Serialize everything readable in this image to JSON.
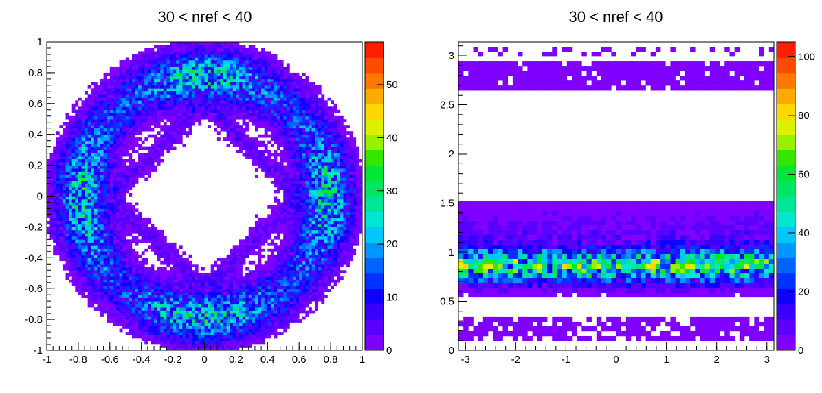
{
  "chart_data": [
    {
      "type": "heatmap",
      "title": "30 < nref < 40",
      "xlabel": "",
      "ylabel": "",
      "xlim": [
        -1,
        1
      ],
      "ylim": [
        -1,
        1
      ],
      "x_ticks": [
        "-1",
        "-0.8",
        "-0.6",
        "-0.4",
        "-0.2",
        "0",
        "0.2",
        "0.4",
        "0.6",
        "0.8",
        "1"
      ],
      "y_ticks": [
        "-1",
        "-0.8",
        "-0.6",
        "-0.4",
        "-0.2",
        "0",
        "0.2",
        "0.4",
        "0.6",
        "0.8",
        "1"
      ],
      "z_range": [
        0,
        58
      ],
      "z_ticks": [
        "0",
        "10",
        "20",
        "30",
        "40",
        "50"
      ],
      "bins": [
        100,
        100
      ],
      "structure": "annular ring of counts between radius ~0.45 and ~1.0, plus a diamond-shaped band |x|+|y| ~0.6; denser spots near (0,±0.8) and (±0.8,0)",
      "colorscale": [
        "#7f00ff",
        "#5a00ff",
        "#3700ff",
        "#0f00ff",
        "#0032ff",
        "#0064ff",
        "#0096ff",
        "#00c8ff",
        "#00e6d0",
        "#00e696",
        "#00e664",
        "#00e632",
        "#32e600",
        "#96f000",
        "#dcf000",
        "#ffd700",
        "#ffaa00",
        "#ff7800",
        "#ff4b00",
        "#ff1e00"
      ],
      "grid": false
    },
    {
      "type": "heatmap",
      "title": "30 < nref < 40",
      "xlabel": "",
      "ylabel": "",
      "xlim": [
        -3.14,
        3.14
      ],
      "ylim": [
        0,
        3.14
      ],
      "x_ticks": [
        "-3",
        "-2",
        "-1",
        "0",
        "1",
        "2",
        "3"
      ],
      "y_ticks": [
        "0",
        "0.5",
        "1",
        "1.5",
        "2",
        "2.5",
        "3"
      ],
      "z_range": [
        0,
        105
      ],
      "z_ticks": [
        "0",
        "20",
        "40",
        "60",
        "80",
        "100"
      ],
      "bins": [
        64,
        64
      ],
      "structure": "horizontal bands: y 0.1-0.3 sparse, y 0.55-1.5 dense with peak near y 0.85 (values up to ~90), y 2.65-2.9 and ~3.05 sparse",
      "colorscale": [
        "#7f00ff",
        "#5a00ff",
        "#3700ff",
        "#0f00ff",
        "#0032ff",
        "#0064ff",
        "#0096ff",
        "#00c8ff",
        "#00e6d0",
        "#00e696",
        "#00e664",
        "#00e632",
        "#32e600",
        "#96f000",
        "#dcf000",
        "#ffd700",
        "#ffaa00",
        "#ff7800",
        "#ff4b00",
        "#ff1e00"
      ],
      "grid": false
    }
  ]
}
